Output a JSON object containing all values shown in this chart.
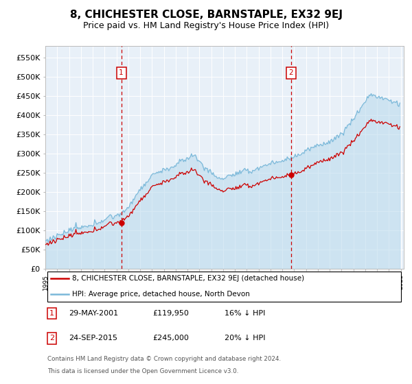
{
  "title": "8, CHICHESTER CLOSE, BARNSTAPLE, EX32 9EJ",
  "subtitle": "Price paid vs. HM Land Registry's House Price Index (HPI)",
  "ylim": [
    0,
    580000
  ],
  "yticks": [
    0,
    50000,
    100000,
    150000,
    200000,
    250000,
    300000,
    350000,
    400000,
    450000,
    500000,
    550000
  ],
  "ytick_labels": [
    "£0",
    "£50K",
    "£100K",
    "£150K",
    "£200K",
    "£250K",
    "£300K",
    "£350K",
    "£400K",
    "£450K",
    "£500K",
    "£550K"
  ],
  "sale1_date": "2001-05-29",
  "sale1_price": 119950,
  "sale2_date": "2015-09-24",
  "sale2_price": 245000,
  "hpi_color": "#7ab8d9",
  "hpi_fill_color": "#b8d9ed",
  "price_color": "#cc0000",
  "marker_color": "#cc0000",
  "vline_color": "#cc0000",
  "plot_bg": "#e8f0f8",
  "grid_color": "#ffffff",
  "title_fontsize": 11,
  "subtitle_fontsize": 9,
  "tick_fontsize": 8,
  "legend_label_price": "8, CHICHESTER CLOSE, BARNSTAPLE, EX32 9EJ (detached house)",
  "legend_label_hpi": "HPI: Average price, detached house, North Devon",
  "table_rows": [
    [
      "1",
      "29-MAY-2001",
      "£119,950",
      "16% ↓ HPI"
    ],
    [
      "2",
      "24-SEP-2015",
      "£245,000",
      "20% ↓ HPI"
    ]
  ],
  "footnote1": "Contains HM Land Registry data © Crown copyright and database right 2024.",
  "footnote2": "This data is licensed under the Open Government Licence v3.0."
}
